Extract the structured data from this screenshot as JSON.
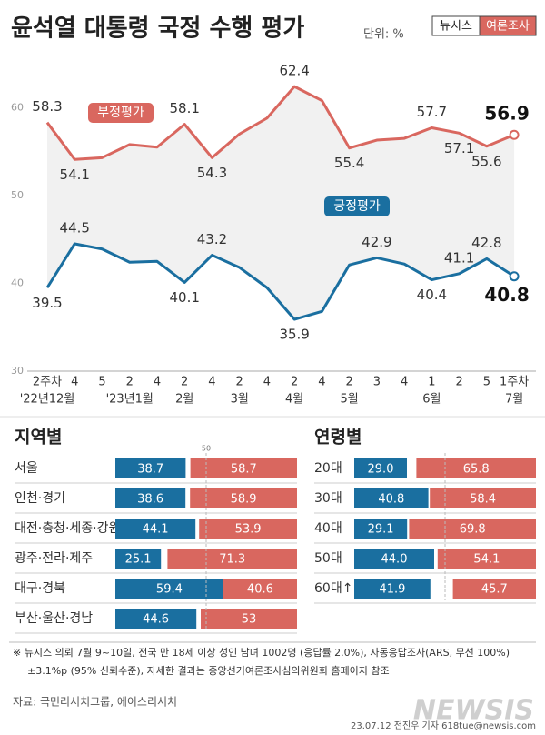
{
  "header": {
    "title": "윤석열 대통령 국정 수행 평가",
    "unit": "단위: %",
    "badge": [
      "뉴시스",
      "여론조사"
    ]
  },
  "chart_data": [
    {
      "type": "line",
      "categories": [
        "2주차",
        "4",
        "5",
        "2",
        "4",
        "2",
        "4",
        "2",
        "4",
        "2",
        "4",
        "2",
        "3",
        "4",
        "1",
        "2",
        "5",
        "1주차"
      ],
      "month_labels": [
        {
          "label": "'22년12월",
          "index": 0
        },
        {
          "label": "'23년1월",
          "index": 3
        },
        {
          "label": "2월",
          "index": 5
        },
        {
          "label": "3월",
          "index": 7
        },
        {
          "label": "4월",
          "index": 9
        },
        {
          "label": "5월",
          "index": 11
        },
        {
          "label": "6월",
          "index": 14
        },
        {
          "label": "7월",
          "index": 17
        }
      ],
      "ylim": [
        30,
        65
      ],
      "yticks": [
        30,
        40,
        50,
        60
      ],
      "grid": false,
      "series": [
        {
          "name": "부정평가",
          "color": "#d9675f",
          "values": [
            58.3,
            54.1,
            54.3,
            55.8,
            55.5,
            58.1,
            54.3,
            57.0,
            58.8,
            62.4,
            60.8,
            55.4,
            56.3,
            56.5,
            57.7,
            57.1,
            55.6,
            56.9
          ],
          "value_labels": [
            "58.3",
            "54.1",
            null,
            null,
            null,
            "58.1",
            "54.3",
            null,
            null,
            "62.4",
            null,
            "55.4",
            null,
            null,
            "57.7",
            "57.1",
            "55.6",
            "56.9"
          ]
        },
        {
          "name": "긍정평가",
          "color": "#1a6fa0",
          "values": [
            39.5,
            44.5,
            43.9,
            42.4,
            42.5,
            40.1,
            43.2,
            41.8,
            39.5,
            35.9,
            36.8,
            42.1,
            42.9,
            42.2,
            40.4,
            41.1,
            42.8,
            40.8
          ],
          "value_labels": [
            "39.5",
            "44.5",
            null,
            null,
            null,
            "40.1",
            "43.2",
            null,
            null,
            "35.9",
            null,
            null,
            "42.9",
            null,
            "40.4",
            "41.1",
            "42.8",
            "40.8"
          ]
        }
      ]
    },
    {
      "type": "bar",
      "title": "지역별",
      "categories": [
        "서울",
        "인천·경기",
        "대전·충청·세종·강원",
        "광주·전라·제주",
        "대구·경북",
        "부산·울산·경남"
      ],
      "xlim": [
        0,
        100
      ],
      "xticks": [
        50
      ],
      "xtick_labels": true,
      "series": [
        {
          "color": "#1a6fa0",
          "values": [
            38.7,
            38.6,
            44.1,
            25.1,
            59.4,
            44.6
          ],
          "value_labels": [
            "38.7",
            "38.6",
            "44.1",
            "25.1",
            "59.4",
            "44.6"
          ]
        },
        {
          "color": "#d9675f",
          "values": [
            58.7,
            58.9,
            53.9,
            71.3,
            40.6,
            53
          ],
          "value_labels": [
            "58.7",
            "58.9",
            "53.9",
            "71.3",
            "40.6",
            "53"
          ]
        }
      ]
    },
    {
      "type": "bar",
      "title": "연령별",
      "categories": [
        "20대",
        "30대",
        "40대",
        "50대",
        "60대↑"
      ],
      "xlim": [
        0,
        100
      ],
      "xticks": [
        50
      ],
      "xtick_labels": false,
      "series": [
        {
          "color": "#1a6fa0",
          "values": [
            29.0,
            40.8,
            29.1,
            44.0,
            41.9
          ],
          "value_labels": [
            "29.0",
            "40.8",
            "29.1",
            "44.0",
            "41.9"
          ]
        },
        {
          "color": "#d9675f",
          "values": [
            65.8,
            58.4,
            69.8,
            54.1,
            45.7
          ],
          "value_labels": [
            "65.8",
            "58.4",
            "69.8",
            "54.1",
            "45.7"
          ]
        }
      ]
    }
  ],
  "notes": [
    "※  뉴시스 의뢰 7월 9~10일, 전국 만 18세 이상 성인 남녀 1002명 (응답률 2.0%), 자동응답조사(ARS, 무선 100%)",
    "±3.1%p (95% 신뢰수준), 자세한 결과는 중앙선거여론조사심의위원회 홈페이지 참조"
  ],
  "source": "자료: 국민리서치그룹, 에이스리서치",
  "credit": "23.07.12 전진우 기자 618tue@newsis.com",
  "watermark": "NEWSIS"
}
